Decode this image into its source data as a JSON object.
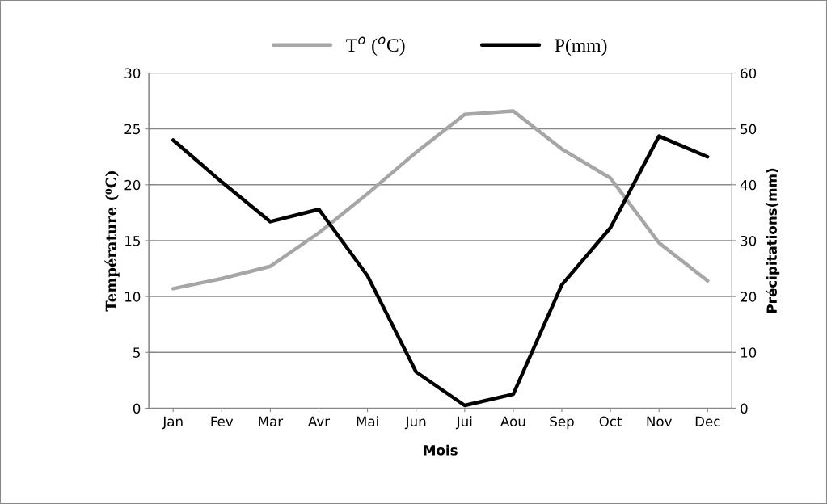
{
  "chart_data": {
    "type": "line",
    "xlabel": "Mois",
    "ylabel": "Température (⁰C)",
    "y2label": "Précipitations(mm)",
    "categories": [
      "Jan",
      "Fev",
      "Mar",
      "Avr",
      "Mai",
      "Jun",
      "Jui",
      "Aou",
      "Sep",
      "Oct",
      "Nov",
      "Dec"
    ],
    "series": [
      {
        "name": "T$^{o}$ ($^{o}$C)",
        "color": "#a6a6a6",
        "values": [
          10.7,
          11.6,
          12.7,
          15.7,
          19.2,
          22.9,
          26.3,
          26.6,
          23.2,
          20.6,
          14.8,
          11.4
        ]
      },
      {
        "name": "P(mm)",
        "color": "#000000",
        "axis": "y2",
        "values": [
          48,
          40.5,
          33.4,
          35.6,
          23.7,
          6.5,
          0.5,
          2.5,
          22.1,
          32.3,
          48.7,
          45
        ]
      }
    ],
    "ylim": [
      0,
      30
    ],
    "yticks": [
      0,
      5,
      10,
      15,
      20,
      25,
      30
    ],
    "y2lim": [
      0,
      60
    ],
    "y2ticks": [
      0,
      10,
      20,
      30,
      40,
      50,
      60
    ],
    "grid": "y",
    "legend": "top",
    "marker": "none",
    "line_style": "solid"
  }
}
